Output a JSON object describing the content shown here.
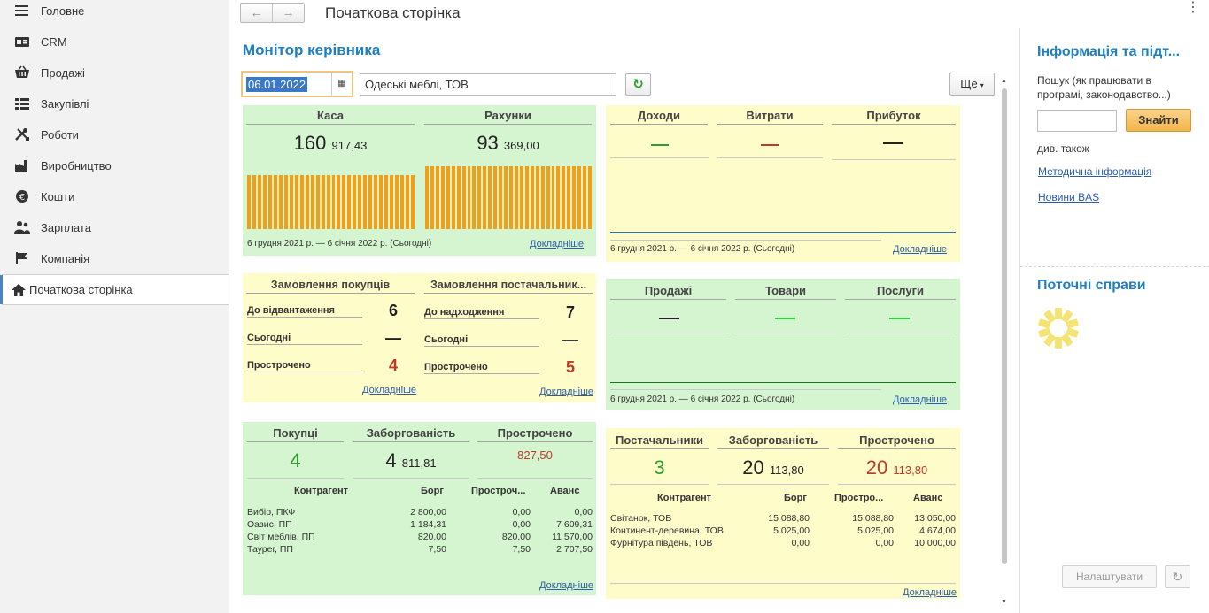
{
  "sidebar": {
    "items": [
      {
        "label": "Головне",
        "icon": "menu-icon"
      },
      {
        "label": "CRM",
        "icon": "crm-icon"
      },
      {
        "label": "Продажі",
        "icon": "basket-icon"
      },
      {
        "label": "Закупівлі",
        "icon": "purchases-icon"
      },
      {
        "label": "Роботи",
        "icon": "tools-icon"
      },
      {
        "label": "Виробництво",
        "icon": "factory-icon"
      },
      {
        "label": "Кошти",
        "icon": "money-icon"
      },
      {
        "label": "Зарплата",
        "icon": "people-icon"
      },
      {
        "label": "Компанія",
        "icon": "flag-icon"
      }
    ],
    "active_item": {
      "label": "Початкова сторінка",
      "icon": "home-icon"
    }
  },
  "header": {
    "title": "Початкова сторінка",
    "back_glyph": "←",
    "forward_glyph": "→",
    "menu_glyph": "⋮"
  },
  "main": {
    "heading": "Монітор керівника",
    "date": "06.01.2022",
    "organization": "Одеські меблі, ТОВ",
    "more_label": "Ще",
    "more_caret": "▾",
    "refresh_glyph": "↻",
    "calendar_glyph": "▦"
  },
  "widgets": {
    "cash": {
      "left_title": "Каса",
      "left_int": "160",
      "left_frac": "917,43",
      "right_title": "Рахунки",
      "right_int": "93",
      "right_frac": "369,00",
      "bar_color": "#f39e13",
      "period": "6 грудня 2021 р. — 6 січня 2022 р. (Сьогодні)",
      "more": "Докладніше"
    },
    "income": {
      "cols": [
        {
          "title": "Доходи",
          "value": "—",
          "color": "#2ea02e"
        },
        {
          "title": "Витрати",
          "value": "—",
          "color": "#c0392b"
        },
        {
          "title": "Прибуток",
          "value": "—",
          "color": "#222222"
        }
      ],
      "line_color": "#2f6fc0",
      "period": "6 грудня 2021 р. — 6 січня 2022 р. (Сьогодні)",
      "more": "Докладніше"
    },
    "orders": {
      "left_title": "Замовлення покупців",
      "right_title": "Замовлення постачальник...",
      "left_rows": [
        {
          "label": "До відвантаження",
          "value": "6",
          "color": "#222222"
        },
        {
          "label": "Сьогодні",
          "value": "—",
          "color": "#222222"
        },
        {
          "label": "Прострочено",
          "value": "4",
          "color": "#c0392b"
        }
      ],
      "right_rows": [
        {
          "label": "До надходження",
          "value": "7",
          "color": "#222222"
        },
        {
          "label": "Сьогодні",
          "value": "—",
          "color": "#222222"
        },
        {
          "label": "Прострочено",
          "value": "5",
          "color": "#c0392b"
        }
      ],
      "left_more": "Докладніше",
      "right_more": "Докладніше"
    },
    "sales": {
      "cols": [
        {
          "title": "Продажі",
          "value": "—",
          "color": "#222222"
        },
        {
          "title": "Товари",
          "value": "—",
          "color": "#2ecc40"
        },
        {
          "title": "Послуги",
          "value": "—",
          "color": "#2ecc40"
        }
      ],
      "line_color": "#1a7a1a",
      "period": "6 грудня 2021 р. — 6 січня 2022 р. (Сьогодні)",
      "more": "Докладніше"
    },
    "buyers": {
      "titles": [
        "Покупці",
        "Заборгованість",
        "Прострочено"
      ],
      "count": "4",
      "debt_int": "4",
      "debt_frac": "811,81",
      "overdue": "827,50",
      "headers": [
        "Контрагент",
        "Борг",
        "Простроч...",
        "Аванс"
      ],
      "rows": [
        [
          "Вибір, ПКФ",
          "2 800,00",
          "0,00",
          "0,00"
        ],
        [
          "Оазис, ПП",
          "1 184,31",
          "0,00",
          "7 609,31"
        ],
        [
          "Світ меблів, ПП",
          "820,00",
          "820,00",
          "11 570,00"
        ],
        [
          "Таурег, ПП",
          "7,50",
          "7,50",
          "2 707,50"
        ]
      ],
      "more": "Докладніше"
    },
    "suppliers": {
      "titles": [
        "Постачальники",
        "Заборгованість",
        "Прострочено"
      ],
      "count": "3",
      "debt_int": "20",
      "debt_frac": "113,80",
      "overdue_int": "20",
      "overdue_frac": "113,80",
      "headers": [
        "Контрагент",
        "Борг",
        "Простро...",
        "Аванс"
      ],
      "rows": [
        [
          "Світанок, ТОВ",
          "15 088,80",
          "15 088,80",
          "13 050,00"
        ],
        [
          "Континент-деревина, ТОВ",
          "5 025,00",
          "5 025,00",
          "4 674,00"
        ],
        [
          "Фурнітура південь, ТОВ",
          "0,00",
          "0,00",
          "10 000,00"
        ]
      ],
      "more": "Докладніше"
    }
  },
  "right": {
    "info_title": "Інформація та підт...",
    "search_label": "Пошук (як працювати в програмі, законодавство...)",
    "find_button": "Знайти",
    "see_also": "див. також",
    "links": [
      "Методична інформація",
      "Новини BAS"
    ],
    "tasks_title": "Поточні справи",
    "setup_button": "Налаштувати",
    "refresh_glyph": "↻"
  }
}
